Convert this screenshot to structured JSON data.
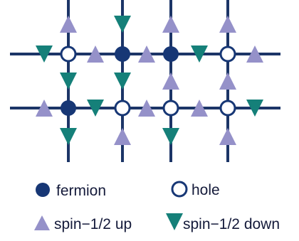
{
  "colors": {
    "line": "#1c3567",
    "fermion": "#173775",
    "hole_stroke": "#173775",
    "hole_fill": "#ffffff",
    "spin_up": "#9591c9",
    "spin_down": "#158079"
  },
  "lattice": {
    "rows": [
      [
        "hole",
        "fermion",
        "fermion",
        "hole"
      ],
      [
        "fermion",
        "hole",
        "hole",
        "hole"
      ]
    ],
    "horizontal_bonds": [
      [
        "down",
        "up",
        "up",
        "down",
        "up"
      ],
      [
        "up",
        "down",
        "up",
        "up",
        "down"
      ]
    ],
    "vertical_bonds": [
      [
        "up",
        "down",
        "up",
        "up"
      ],
      [
        "down",
        "down",
        "up",
        "up"
      ],
      [
        "down",
        "up",
        "down",
        "up"
      ]
    ]
  },
  "legend": {
    "fermion_label": "fermion",
    "hole_label": "hole",
    "spin_up_label": "spin−1/2 up",
    "spin_down_label": "spin−1/2 down"
  },
  "icons": [
    "fermion-icon",
    "hole-icon",
    "spin-up-icon",
    "spin-down-icon"
  ]
}
